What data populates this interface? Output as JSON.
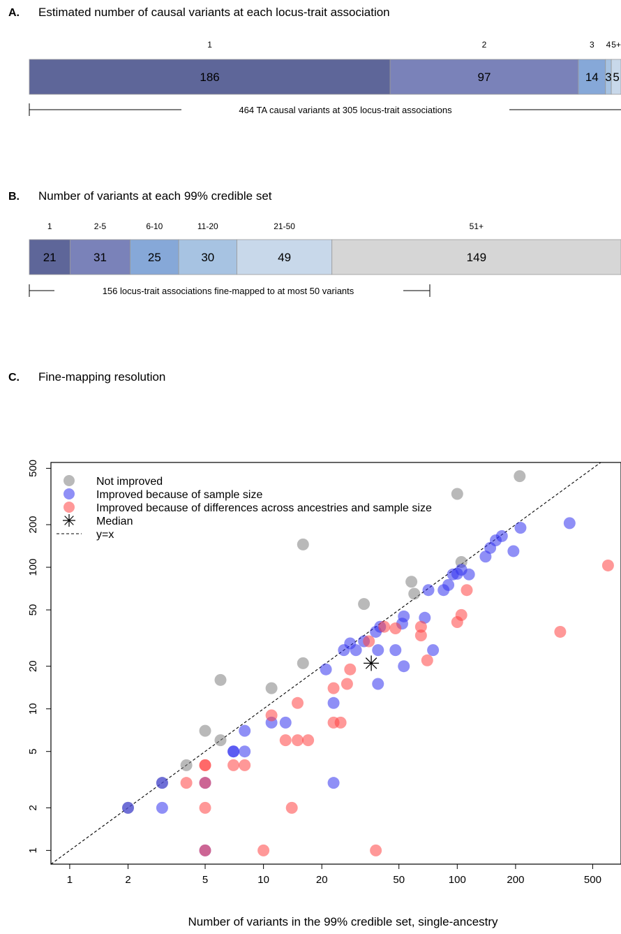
{
  "panels": {
    "a": {
      "letter": "A.",
      "title": "Estimated number of causal variants at each locus-trait association",
      "note": "464 TA causal variants at 305 locus-trait associations"
    },
    "b": {
      "letter": "B.",
      "title": "Number of variants at each 99% credible set",
      "note": "156 locus-trait associations fine-mapped to at most 50 variants"
    },
    "c": {
      "letter": "C.",
      "title": "Fine-mapping resolution"
    }
  },
  "chart_data": [
    {
      "type": "bar",
      "orientation": "horizontal-stacked",
      "categories": [
        "1",
        "2",
        "3",
        "4",
        "5+"
      ],
      "values": [
        186,
        97,
        14,
        3,
        5
      ],
      "colors": [
        "#5e6699",
        "#7a82b9",
        "#86a8d8",
        "#a7c3e2",
        "#c8d8ea"
      ]
    },
    {
      "type": "bar",
      "orientation": "horizontal-stacked",
      "categories": [
        "1",
        "2-5",
        "6-10",
        "11-20",
        "21-50",
        "51+"
      ],
      "values": [
        21,
        31,
        25,
        30,
        49,
        149
      ],
      "colors": [
        "#5e6699",
        "#7a82b9",
        "#86a8d8",
        "#a7c3e2",
        "#c8d8ea",
        "#d6d6d6"
      ]
    },
    {
      "type": "scatter",
      "xlabel": "Number of variants in the 99% credible set, single-ancestry",
      "ylabel": "",
      "xscale": "log",
      "yscale": "log",
      "xlim": [
        0.8,
        700
      ],
      "ylim": [
        0.8,
        550
      ],
      "xticks": [
        1,
        2,
        5,
        10,
        20,
        50,
        100,
        200,
        500
      ],
      "yticks": [
        1,
        2,
        5,
        10,
        20,
        50,
        100,
        200,
        500
      ],
      "grid": false,
      "legend_position": "top-left",
      "legend": [
        {
          "label": "Not improved",
          "marker": "circle",
          "color": "#808080"
        },
        {
          "label": "Improved because of sample size",
          "marker": "circle",
          "color": "#3333ee"
        },
        {
          "label": "Improved because of differences across ancestries and sample size",
          "marker": "circle",
          "color": "#ff4444"
        },
        {
          "label": "Median",
          "marker": "asterisk",
          "color": "#000000"
        },
        {
          "label": "y=x",
          "marker": "dashed-line",
          "color": "#000000"
        }
      ],
      "series": [
        {
          "name": "Not improved",
          "color": "#808080",
          "points": [
            [
              2,
              2
            ],
            [
              3,
              3
            ],
            [
              4,
              4
            ],
            [
              5,
              7
            ],
            [
              6,
              6
            ],
            [
              6,
              16
            ],
            [
              11,
              14
            ],
            [
              16,
              21
            ],
            [
              16,
              145
            ],
            [
              33,
              55
            ],
            [
              58,
              79
            ],
            [
              60,
              65
            ],
            [
              100,
              330
            ],
            [
              105,
              109
            ],
            [
              210,
              440
            ]
          ]
        },
        {
          "name": "Improved because of sample size",
          "color": "#3333ee",
          "points": [
            [
              2,
              2
            ],
            [
              3,
              2
            ],
            [
              3,
              3
            ],
            [
              5,
              3
            ],
            [
              5,
              1
            ],
            [
              7,
              5
            ],
            [
              7,
              5
            ],
            [
              8,
              5
            ],
            [
              8,
              7
            ],
            [
              11,
              8
            ],
            [
              13,
              8
            ],
            [
              21,
              19
            ],
            [
              23,
              11
            ],
            [
              23,
              3
            ],
            [
              26,
              26
            ],
            [
              28,
              29
            ],
            [
              30,
              26
            ],
            [
              33,
              30
            ],
            [
              38,
              35
            ],
            [
              39,
              26
            ],
            [
              39,
              15
            ],
            [
              40,
              38
            ],
            [
              48,
              26
            ],
            [
              52,
              40
            ],
            [
              53,
              45
            ],
            [
              53,
              20
            ],
            [
              68,
              44
            ],
            [
              71,
              69
            ],
            [
              75,
              26
            ],
            [
              85,
              69
            ],
            [
              90,
              75
            ],
            [
              95,
              89
            ],
            [
              100,
              90
            ],
            [
              105,
              96
            ],
            [
              115,
              89
            ],
            [
              140,
              119
            ],
            [
              148,
              137
            ],
            [
              158,
              155
            ],
            [
              170,
              166
            ],
            [
              195,
              130
            ],
            [
              212,
              190
            ],
            [
              380,
              205
            ]
          ]
        },
        {
          "name": "Improved because of differences across ancestries and sample size",
          "color": "#ff4444",
          "points": [
            [
              4,
              3
            ],
            [
              5,
              4
            ],
            [
              5,
              4
            ],
            [
              5,
              3
            ],
            [
              5,
              2
            ],
            [
              5,
              1
            ],
            [
              7,
              4
            ],
            [
              8,
              4
            ],
            [
              10,
              1
            ],
            [
              11,
              9
            ],
            [
              13,
              6
            ],
            [
              14,
              2
            ],
            [
              15,
              6
            ],
            [
              15,
              11
            ],
            [
              17,
              6
            ],
            [
              23,
              14
            ],
            [
              23,
              8
            ],
            [
              25,
              8
            ],
            [
              27,
              15
            ],
            [
              28,
              19
            ],
            [
              35,
              30
            ],
            [
              38,
              1
            ],
            [
              42,
              38
            ],
            [
              48,
              37
            ],
            [
              65,
              33
            ],
            [
              65,
              38
            ],
            [
              70,
              22
            ],
            [
              100,
              41
            ],
            [
              105,
              46
            ],
            [
              112,
              69
            ],
            [
              340,
              35
            ],
            [
              600,
              103
            ]
          ]
        },
        {
          "name": "Median",
          "color": "#000000",
          "points": [
            [
              36,
              21
            ]
          ]
        }
      ]
    }
  ]
}
